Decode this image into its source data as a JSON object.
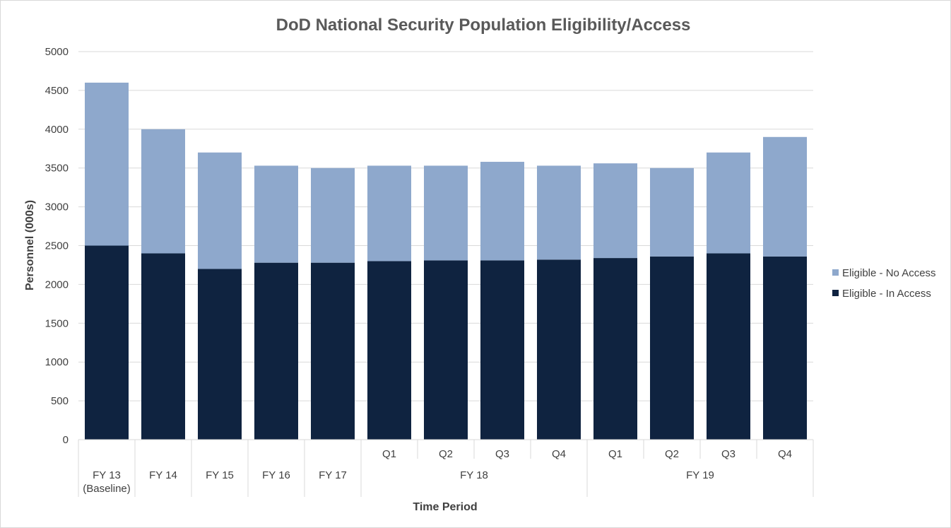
{
  "chart_data": {
    "type": "bar",
    "stacked": true,
    "title": "DoD National Security Population Eligibility/Access",
    "xlabel": "Time Period",
    "ylabel": "Personnel (000s)",
    "ylim": [
      0,
      5000
    ],
    "ytick_step": 500,
    "grid": true,
    "legend_position": "right",
    "categories": [
      "FY 13",
      "FY 14",
      "FY 15",
      "FY 16",
      "FY 17",
      "Q1",
      "Q2",
      "Q3",
      "Q4",
      "Q1",
      "Q2",
      "Q3",
      "Q4"
    ],
    "category_lines": [
      [
        "FY 13",
        "(Baseline)"
      ],
      [
        "FY 14"
      ],
      [
        "FY 15"
      ],
      [
        "FY 16"
      ],
      [
        "FY 17"
      ],
      [
        "Q1"
      ],
      [
        "Q2"
      ],
      [
        "Q3"
      ],
      [
        "Q4"
      ],
      [
        "Q1"
      ],
      [
        "Q2"
      ],
      [
        "Q3"
      ],
      [
        "Q4"
      ]
    ],
    "groups": [
      {
        "label": "FY 18",
        "start": 5,
        "end": 8
      },
      {
        "label": "FY 19",
        "start": 9,
        "end": 12
      }
    ],
    "series": [
      {
        "name": "Eligible - In Access",
        "color": "#0f2340",
        "values": [
          2500,
          2400,
          2200,
          2280,
          2280,
          2300,
          2310,
          2310,
          2320,
          2340,
          2360,
          2400,
          2360
        ]
      },
      {
        "name": "Eligible - No Access",
        "color": "#8ea8cc",
        "values": [
          2100,
          1600,
          1500,
          1250,
          1220,
          1230,
          1220,
          1270,
          1210,
          1220,
          1140,
          1300,
          1540
        ]
      }
    ],
    "legend_order": [
      1,
      0
    ]
  }
}
